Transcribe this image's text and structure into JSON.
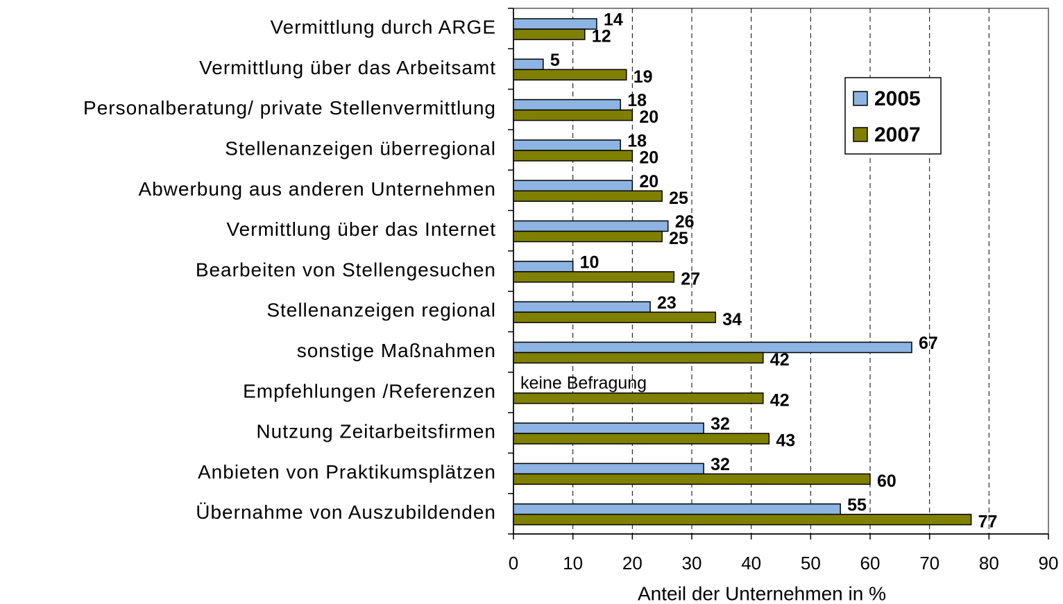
{
  "chart_data": {
    "type": "hbar",
    "categories": [
      "Vermittlung durch ARGE",
      "Vermittlung über das Arbeitsamt",
      "Personalberatung/ private Stellenvermittlung",
      "Stellenanzeigen überregional",
      "Abwerbung aus anderen Unternehmen",
      "Vermittlung über das Internet",
      "Bearbeiten von Stellengesuchen",
      "Stellenanzeigen regional",
      "sonstige Maßnahmen",
      "Empfehlungen /Referenzen",
      "Nutzung Zeitarbeitsfirmen",
      "Anbieten von Praktikumsplätzen",
      "Übernahme von Auszubildenden"
    ],
    "series": [
      {
        "name": "2005",
        "color": "#8db4e2",
        "values": [
          14,
          5,
          18,
          18,
          20,
          26,
          10,
          23,
          67,
          null,
          32,
          32,
          55
        ]
      },
      {
        "name": "2007",
        "color": "#808000",
        "values": [
          12,
          19,
          20,
          20,
          25,
          25,
          27,
          34,
          42,
          42,
          43,
          60,
          77
        ]
      }
    ],
    "annotation": "keine Befragung",
    "xlabel": "Anteil der Unternehmen in %",
    "xlim": [
      0,
      90
    ],
    "xticks": [
      0,
      10,
      20,
      30,
      40,
      50,
      60,
      70,
      80,
      90
    ],
    "grid": true,
    "legend": "upper right"
  }
}
